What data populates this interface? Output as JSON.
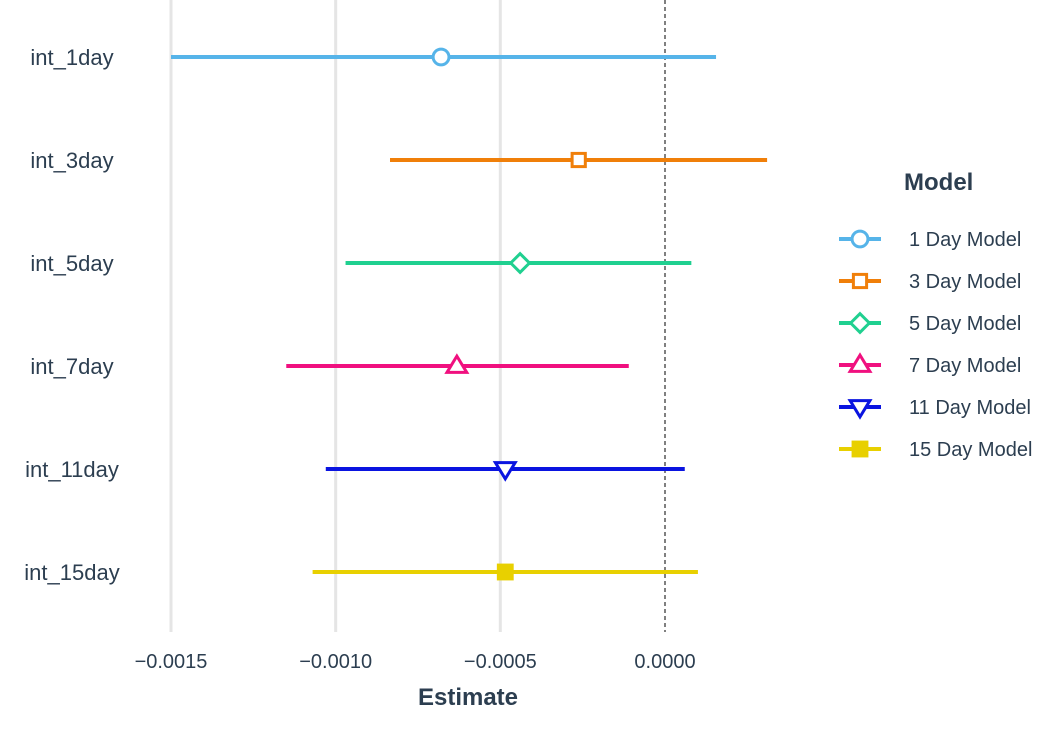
{
  "chart_data": {
    "type": "scatter",
    "subtype": "coefficient-plot",
    "xlabel": "Estimate",
    "ylabel": "",
    "xlim": [
      -0.0015,
      0.00035
    ],
    "x_ticks": [
      -0.0015,
      -0.001,
      -0.0005,
      0.0
    ],
    "x_tick_labels": [
      "−0.0015",
      "−0.0010",
      "−0.0005",
      "0.0000"
    ],
    "reference_line": 0.0,
    "grid": "vertical major gridlines",
    "legend": {
      "title": "Model",
      "position": "right"
    },
    "categories": [
      "int_1day",
      "int_3day",
      "int_5day",
      "int_7day",
      "int_11day",
      "int_15day"
    ],
    "series": [
      {
        "name": "1 Day Model",
        "category": "int_1day",
        "estimate": -0.00068,
        "low": -0.0015,
        "high": 0.000155,
        "color": "#56b4e9",
        "shape": "circle-open"
      },
      {
        "name": "3 Day Model",
        "category": "int_3day",
        "estimate": -0.000262,
        "low": -0.000835,
        "high": 0.00031,
        "color": "#f07f09",
        "shape": "square-open"
      },
      {
        "name": "5 Day Model",
        "category": "int_5day",
        "estimate": -0.00044,
        "low": -0.00097,
        "high": 8e-05,
        "color": "#20d090",
        "shape": "diamond-open"
      },
      {
        "name": "7 Day Model",
        "category": "int_7day",
        "estimate": -0.000632,
        "low": -0.00115,
        "high": -0.00011,
        "color": "#f0107f",
        "shape": "triangle-up-open"
      },
      {
        "name": "11 Day Model",
        "category": "int_11day",
        "estimate": -0.000485,
        "low": -0.00103,
        "high": 6e-05,
        "color": "#0a14e0",
        "shape": "triangle-down-open"
      },
      {
        "name": "15 Day Model",
        "category": "int_15day",
        "estimate": -0.000485,
        "low": -0.00107,
        "high": 0.0001,
        "color": "#e8d000",
        "shape": "square-filled"
      }
    ]
  }
}
